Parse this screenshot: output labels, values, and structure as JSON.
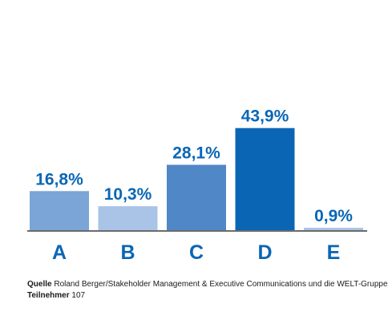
{
  "chart_data": {
    "type": "bar",
    "categories": [
      "A",
      "B",
      "C",
      "D",
      "E"
    ],
    "values": [
      16.8,
      10.3,
      28.1,
      43.9,
      0.9
    ],
    "value_labels": [
      "16,8%",
      "10,3%",
      "28,1%",
      "43,9%",
      "0,9%"
    ],
    "ylim": [
      0,
      50
    ],
    "grid": false,
    "bar_colors": [
      "#7aa5d6",
      "#a9c4e6",
      "#5087c6",
      "#0a66b5",
      "#a9c4e6"
    ],
    "label_color": "#0a66b5"
  },
  "footer": {
    "source_label": "Quelle",
    "source_text": "Roland Berger/Stakeholder Management & Executive Communications  und die WELT-Gruppe",
    "participants_label": "Teilnehmer",
    "participants_value": "107"
  }
}
